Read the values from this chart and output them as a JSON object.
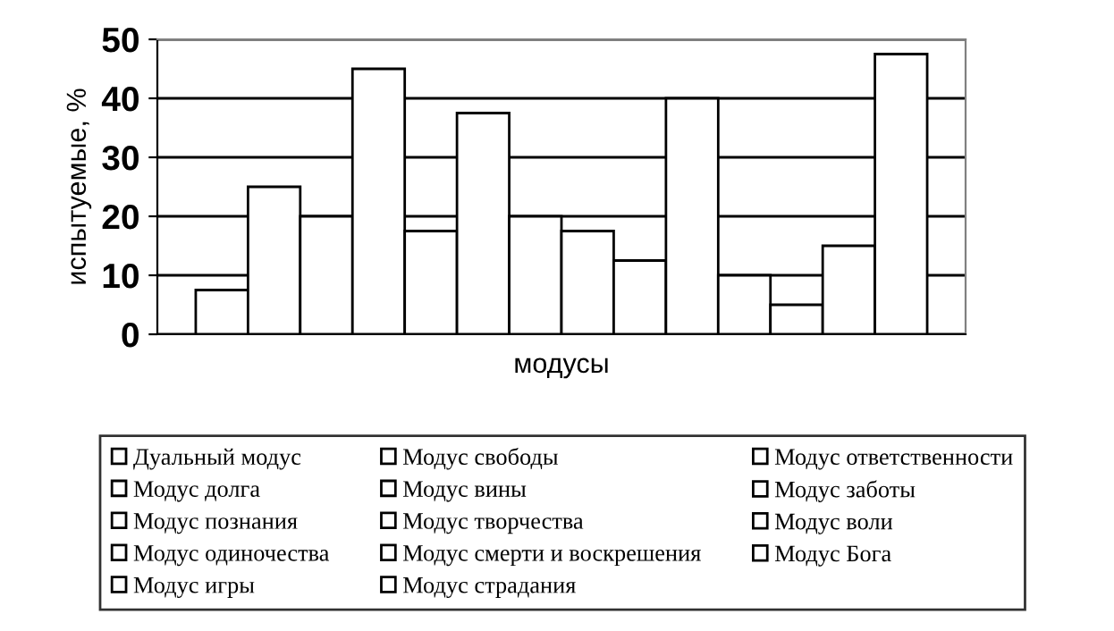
{
  "chart_data": {
    "type": "bar",
    "xlabel": "модусы",
    "ylabel": "испытуемые, %",
    "categories": [
      null
    ],
    "series": [
      {
        "name": "Дуальный модус",
        "color": "#ffffff",
        "values": [
          7.5
        ]
      },
      {
        "name": "Модус свободы",
        "color": "#ffffff",
        "values": [
          25
        ]
      },
      {
        "name": "Модус ответственности",
        "color": "#ffffff",
        "values": [
          20
        ]
      },
      {
        "name": "Модус долга",
        "color": "#ffffff",
        "values": [
          45
        ]
      },
      {
        "name": "Модус вины",
        "color": "#ffffff",
        "values": [
          17.5
        ]
      },
      {
        "name": "Модус заботы",
        "color": "#ffffff",
        "values": [
          37.5
        ]
      },
      {
        "name": "Модус познания",
        "color": "#ffffff",
        "values": [
          20
        ]
      },
      {
        "name": "Модус творчества",
        "color": "#ffffff",
        "values": [
          17.5
        ]
      },
      {
        "name": "Модус воли",
        "color": "#ffffff",
        "values": [
          12.5
        ]
      },
      {
        "name": "Модус одиночества",
        "color": "#ffffff",
        "values": [
          40
        ]
      },
      {
        "name": "Модус смерти и воскрешения",
        "color": "#ffffff",
        "values": [
          10
        ]
      },
      {
        "name": "Модус Бога",
        "color": "#ffffff",
        "values": [
          5
        ]
      },
      {
        "name": "Модус игры",
        "color": "#ffffff",
        "values": [
          15
        ]
      },
      {
        "name": "Модус страдания",
        "color": "#ffffff",
        "values": [
          47.5
        ]
      }
    ],
    "ylim": [
      0,
      50
    ],
    "yticks": [
      0,
      10,
      20,
      30,
      40,
      50
    ],
    "grid": "y",
    "legend": "bottom"
  }
}
